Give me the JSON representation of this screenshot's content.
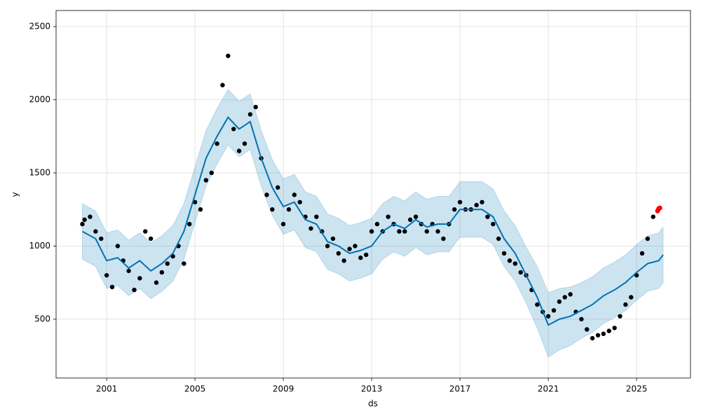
{
  "chart_data": {
    "type": "forecast",
    "xlabel": "ds",
    "ylabel": "y",
    "xlim": [
      1998.71,
      2027.44
    ],
    "ylim": [
      98,
      2610
    ],
    "xticks": [
      2001,
      2005,
      2009,
      2013,
      2017,
      2021,
      2025
    ],
    "yticks": [
      500,
      1000,
      1500,
      2000,
      2500
    ],
    "grid": true,
    "points": {
      "color": "#000000",
      "x": [
        1999.9,
        2000,
        2000.25,
        2000.5,
        2000.75,
        2001,
        2001.25,
        2001.5,
        2001.75,
        2002,
        2002.25,
        2002.5,
        2002.75,
        2003,
        2003.25,
        2003.5,
        2003.75,
        2004,
        2004.25,
        2004.5,
        2004.75,
        2005,
        2005.25,
        2005.5,
        2005.75,
        2006,
        2006.25,
        2006.5,
        2006.75,
        2007,
        2007.25,
        2007.5,
        2007.75,
        2008,
        2008.25,
        2008.5,
        2008.75,
        2009,
        2009.25,
        2009.5,
        2009.75,
        2010,
        2010.25,
        2010.5,
        2010.75,
        2011,
        2011.25,
        2011.5,
        2011.75,
        2012,
        2012.25,
        2012.5,
        2012.75,
        2013,
        2013.25,
        2013.5,
        2013.75,
        2014,
        2014.25,
        2014.5,
        2014.75,
        2015,
        2015.25,
        2015.5,
        2015.75,
        2016,
        2016.25,
        2016.5,
        2016.75,
        2017,
        2017.25,
        2017.5,
        2017.75,
        2018,
        2018.25,
        2018.5,
        2018.75,
        2019,
        2019.25,
        2019.5,
        2019.75,
        2020,
        2020.25,
        2020.5,
        2020.75,
        2021,
        2021.25,
        2021.5,
        2021.75,
        2022,
        2022.25,
        2022.5,
        2022.75,
        2023,
        2023.25,
        2023.5,
        2023.75,
        2024,
        2024.25,
        2024.5,
        2024.75,
        2025,
        2025.25,
        2025.5,
        2025.75
      ],
      "values": [
        1150,
        1180,
        1200,
        1100,
        1050,
        800,
        720,
        1000,
        900,
        830,
        700,
        780,
        1100,
        1050,
        750,
        820,
        880,
        930,
        1000,
        880,
        1150,
        1300,
        1250,
        1450,
        1500,
        1700,
        2100,
        2300,
        1800,
        1650,
        1700,
        1900,
        1950,
        1600,
        1350,
        1250,
        1400,
        1150,
        1250,
        1350,
        1300,
        1200,
        1120,
        1200,
        1100,
        1000,
        1050,
        950,
        900,
        980,
        1000,
        920,
        940,
        1100,
        1150,
        1100,
        1200,
        1150,
        1100,
        1100,
        1180,
        1200,
        1150,
        1100,
        1150,
        1100,
        1050,
        1150,
        1250,
        1300,
        1250,
        1250,
        1280,
        1300,
        1200,
        1150,
        1050,
        950,
        900,
        880,
        820,
        800,
        700,
        600,
        550,
        520,
        560,
        620,
        650,
        670,
        550,
        500,
        430,
        370,
        390,
        400,
        420,
        440,
        520,
        600,
        650,
        800,
        950,
        1050,
        1200
      ]
    },
    "forecast": {
      "color": "#0072b2",
      "band_color": "#0072b2",
      "x": [
        1999.9,
        2000.5,
        2001,
        2001.5,
        2002,
        2002.5,
        2003,
        2003.5,
        2004,
        2004.5,
        2005,
        2005.5,
        2006,
        2006.5,
        2007,
        2007.5,
        2008,
        2008.5,
        2009,
        2009.5,
        2010,
        2010.5,
        2011,
        2011.5,
        2012,
        2012.5,
        2013,
        2013.5,
        2014,
        2014.5,
        2015,
        2015.5,
        2016,
        2016.5,
        2017,
        2017.5,
        2018,
        2018.5,
        2019,
        2019.5,
        2020,
        2020.5,
        2021,
        2021.5,
        2022,
        2022.5,
        2023,
        2023.5,
        2024,
        2024.5,
        2025,
        2025.5,
        2026,
        2026.2
      ],
      "values": [
        1100,
        1050,
        900,
        920,
        850,
        900,
        830,
        880,
        950,
        1100,
        1350,
        1600,
        1750,
        1880,
        1800,
        1850,
        1600,
        1400,
        1270,
        1300,
        1180,
        1150,
        1030,
        1000,
        950,
        970,
        1000,
        1100,
        1150,
        1120,
        1180,
        1130,
        1150,
        1150,
        1250,
        1250,
        1250,
        1200,
        1050,
        950,
        800,
        650,
        460,
        500,
        520,
        560,
        600,
        660,
        700,
        750,
        820,
        880,
        900,
        940
      ],
      "lower": [
        910,
        860,
        710,
        730,
        660,
        710,
        640,
        690,
        760,
        910,
        1160,
        1410,
        1560,
        1690,
        1610,
        1660,
        1410,
        1210,
        1080,
        1110,
        990,
        960,
        840,
        810,
        760,
        780,
        810,
        910,
        960,
        930,
        990,
        940,
        960,
        960,
        1060,
        1060,
        1060,
        1010,
        860,
        760,
        610,
        440,
        240,
        290,
        320,
        370,
        410,
        470,
        510,
        560,
        630,
        690,
        710,
        750
      ],
      "upper": [
        1290,
        1240,
        1090,
        1110,
        1040,
        1090,
        1020,
        1070,
        1140,
        1290,
        1540,
        1790,
        1940,
        2070,
        1990,
        2040,
        1790,
        1590,
        1460,
        1490,
        1370,
        1340,
        1220,
        1190,
        1140,
        1160,
        1190,
        1290,
        1340,
        1310,
        1370,
        1320,
        1340,
        1340,
        1440,
        1440,
        1440,
        1390,
        1240,
        1140,
        990,
        860,
        680,
        710,
        720,
        750,
        790,
        850,
        890,
        940,
        1010,
        1070,
        1090,
        1130
      ]
    },
    "recent": {
      "color": "#ff0000",
      "x": [
        2025.95,
        2026.0,
        2026.05
      ],
      "values": [
        1240,
        1255,
        1260
      ]
    }
  }
}
